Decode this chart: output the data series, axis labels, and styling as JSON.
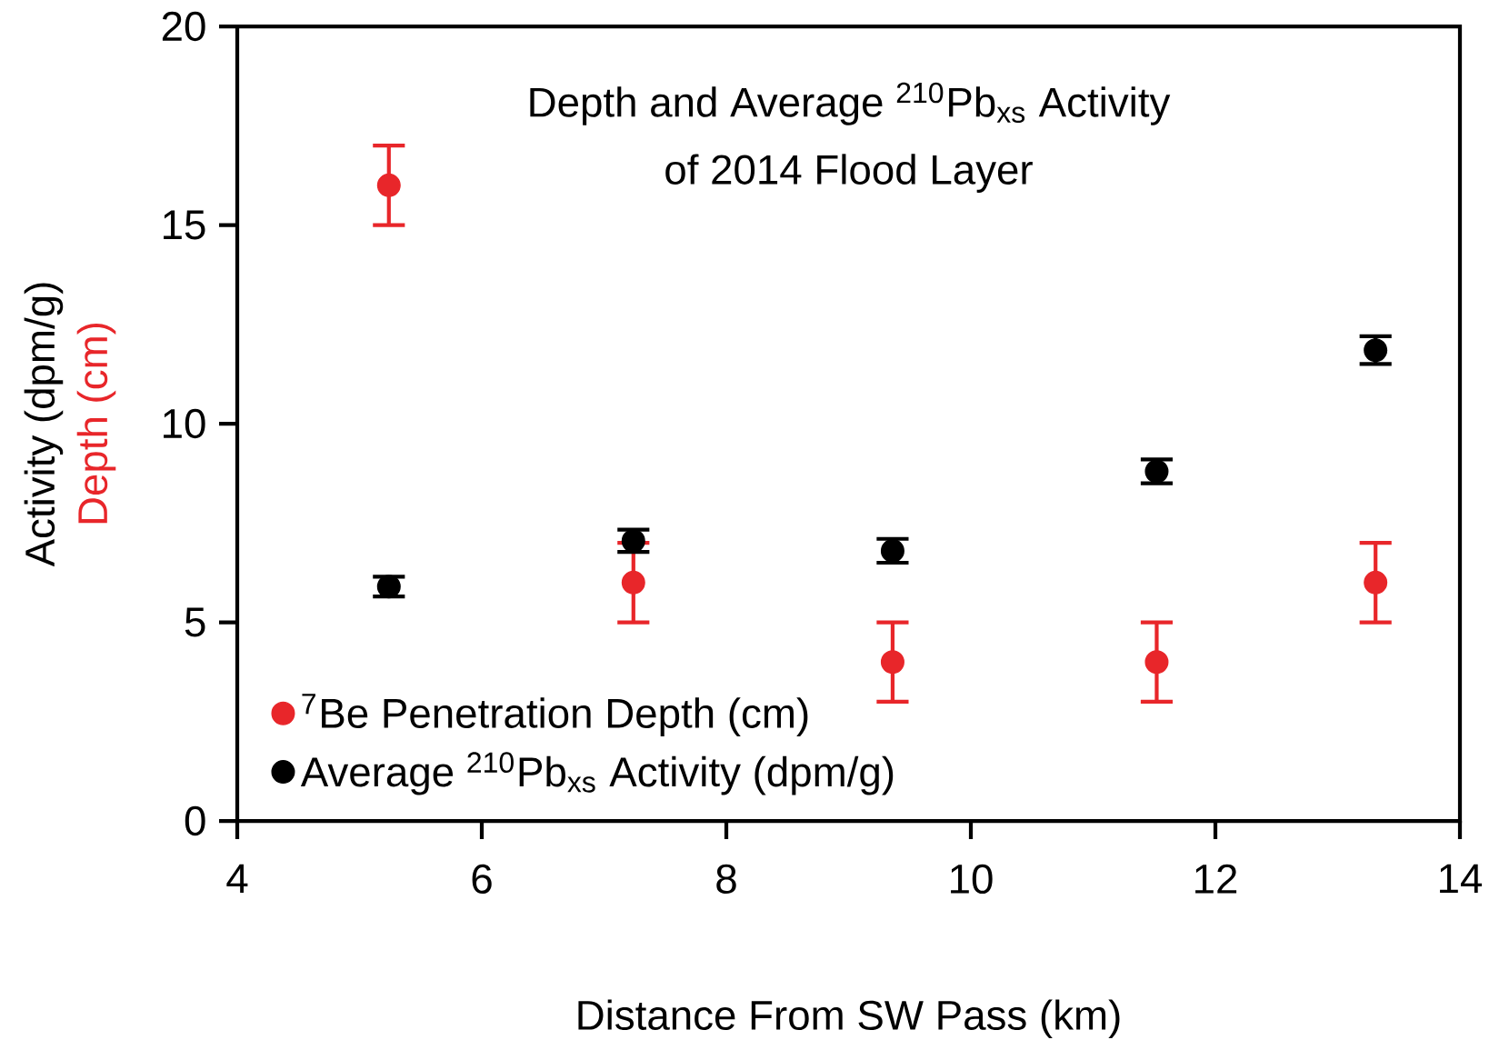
{
  "chart_data": {
    "type": "scatter",
    "title": "Depth and Average $^{210}$Pb$_{xs}$ Activity",
    "subtitle": "of 2014 Flood Layer",
    "xlabel": "Distance From SW Pass (km)",
    "ylabel": "Activity (dpm/g)",
    "annotations": [
      "Depth (cm)"
    ],
    "xlim": [
      4,
      14
    ],
    "xticks": [
      4,
      6,
      8,
      10,
      12,
      14
    ],
    "ylim": [
      0,
      20
    ],
    "yticks": [
      0,
      5,
      10,
      15,
      20
    ],
    "grid": false,
    "legend": "bottom left",
    "marker": "circle",
    "series": [
      {
        "name": "$^{7}$Be Penetration Depth (cm)",
        "color": "#e8262a",
        "x": [
          5.24,
          7.24,
          9.36,
          11.52,
          13.31
        ],
        "values": [
          16,
          6,
          4,
          4,
          6
        ],
        "errors": [
          1,
          1,
          1,
          1,
          1
        ]
      },
      {
        "name": "Average $^{210}$Pb$_{xs}$ Activity (dpm/g)",
        "color": "#000000",
        "x": [
          5.24,
          7.24,
          9.36,
          11.52,
          13.31
        ],
        "values": [
          5.9,
          7.05,
          6.8,
          8.8,
          11.85
        ],
        "errors": [
          0.25,
          0.28,
          0.3,
          0.3,
          0.35
        ]
      }
    ]
  }
}
